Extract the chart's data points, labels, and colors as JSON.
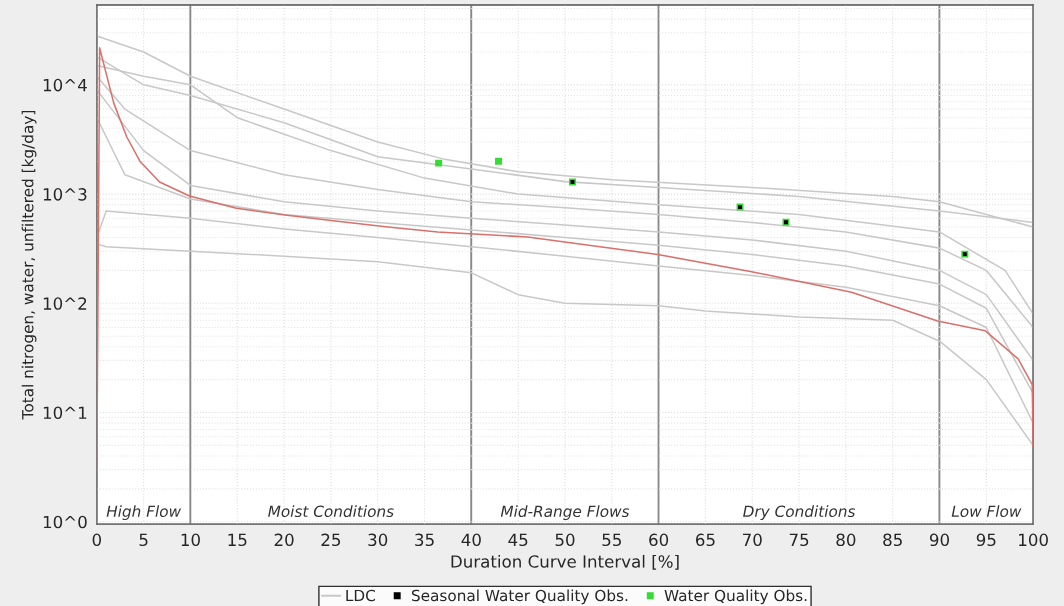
{
  "chart_data": {
    "type": "line",
    "xlabel": "Duration Curve Interval [%]",
    "ylabel": "Total nitrogen, water, unfiltered [kg/day]",
    "xlim": [
      0,
      100
    ],
    "xticks": [
      0,
      5,
      10,
      15,
      20,
      25,
      30,
      35,
      40,
      45,
      50,
      55,
      60,
      65,
      70,
      75,
      80,
      85,
      90,
      95,
      100
    ],
    "ylim": [
      0.95,
      54000
    ],
    "yticks": [
      {
        "value": 1,
        "label": "10^0"
      },
      {
        "value": 10,
        "label": "10^1"
      },
      {
        "value": 100,
        "label": "10^2"
      },
      {
        "value": 1000,
        "label": "10^3"
      },
      {
        "value": 10000,
        "label": "10^4"
      }
    ],
    "log": "y",
    "grid": true,
    "legend": "bottom",
    "line_style": "solid",
    "bands": [
      {
        "axis": "x",
        "from": 0,
        "to": 10,
        "label": "High Flow",
        "color": "#ffffff"
      },
      {
        "axis": "x",
        "from": 10,
        "to": 40,
        "label": "Moist Conditions",
        "color": "#ffffff"
      },
      {
        "axis": "x",
        "from": 40,
        "to": 60,
        "label": "Mid-Range Flows",
        "color": "#ffffff"
      },
      {
        "axis": "x",
        "from": 60,
        "to": 90,
        "label": "Dry Conditions",
        "color": "#ffffff"
      },
      {
        "axis": "x",
        "from": 90,
        "to": 100,
        "label": "Low Flow",
        "color": "#ffffff"
      }
    ],
    "series": [
      {
        "name": "LDC",
        "color": "#c8c8c8",
        "x": [
          0,
          5,
          10,
          20,
          30,
          37,
          45,
          55,
          70,
          85,
          90,
          95,
          100
        ],
        "values": [
          28000,
          20000,
          12000,
          6000,
          3000,
          2100,
          1600,
          1350,
          1150,
          950,
          850,
          650,
          500
        ]
      },
      {
        "color": "#c8c8c8",
        "x": [
          0,
          5,
          10,
          20,
          30,
          40,
          50,
          60,
          75,
          90,
          100
        ],
        "values": [
          18000,
          10000,
          8000,
          4500,
          2200,
          1700,
          1300,
          1150,
          950,
          700,
          550
        ]
      },
      {
        "color": "#c8c8c8",
        "x": [
          0,
          5,
          10,
          15,
          25,
          35,
          45,
          60,
          75,
          90,
          97,
          100
        ],
        "values": [
          15000,
          12000,
          10000,
          5000,
          2500,
          1400,
          1000,
          800,
          650,
          450,
          200,
          80
        ]
      },
      {
        "color": "#c8c8c8",
        "x": [
          0,
          3,
          10,
          20,
          30,
          40,
          50,
          60,
          70,
          80,
          90,
          95,
          100
        ],
        "values": [
          12000,
          6000,
          2500,
          1500,
          1100,
          850,
          750,
          650,
          550,
          450,
          320,
          200,
          60
        ]
      },
      {
        "color": "#c8c8c8",
        "x": [
          0,
          5,
          10,
          20,
          30,
          40,
          50,
          60,
          70,
          80,
          90,
          95,
          100
        ],
        "values": [
          9000,
          2500,
          1200,
          850,
          700,
          600,
          520,
          450,
          380,
          300,
          200,
          120,
          30
        ]
      },
      {
        "color": "#c8c8c8",
        "x": [
          0,
          3,
          10,
          20,
          30,
          40,
          50,
          60,
          70,
          80,
          90,
          95,
          100
        ],
        "values": [
          5000,
          1500,
          900,
          650,
          550,
          470,
          400,
          340,
          280,
          220,
          150,
          90,
          15
        ]
      },
      {
        "color": "#c8c8c8",
        "x": [
          0,
          1,
          10,
          20,
          30,
          40,
          50,
          60,
          70,
          80,
          90,
          95,
          100
        ],
        "values": [
          400,
          700,
          600,
          480,
          400,
          330,
          270,
          220,
          180,
          140,
          95,
          60,
          8
        ]
      },
      {
        "color": "#c8c8c8",
        "x": [
          0,
          1,
          10,
          20,
          30,
          40,
          45,
          50,
          60,
          65,
          75,
          85,
          90,
          95,
          100
        ],
        "values": [
          350,
          330,
          300,
          270,
          240,
          190,
          120,
          100,
          95,
          85,
          75,
          70,
          45,
          20,
          5
        ]
      },
      {
        "color": "#d9706a",
        "x": [
          0,
          0.3,
          1.8,
          3.2,
          4.6,
          6.7,
          9.9,
          14.9,
          20.3,
          25.7,
          31.1,
          36.4,
          46,
          59.9,
          69.8,
          80.6,
          89.8,
          94.9,
          98.4,
          99.9,
          100
        ],
        "values": [
          3,
          21800,
          6840,
          3330,
          2000,
          1290,
          960,
          740,
          640,
          565,
          500,
          450,
          405,
          280,
          196,
          126,
          69,
          56,
          31,
          18,
          4.8
        ]
      },
      {
        "name": "Seasonal Water Quality Obs.",
        "type": "scatter",
        "color": "#000000",
        "marker": "square",
        "x": [
          50.8,
          68.7,
          73.6,
          92.7
        ],
        "values": [
          1290,
          760,
          553,
          282
        ]
      },
      {
        "name": "Water Quality Obs.",
        "type": "scatter",
        "color": "#33dd33",
        "marker": "square",
        "x": [
          36.5,
          42.9,
          50.8,
          68.7,
          73.6,
          92.7
        ],
        "values": [
          1920,
          2000,
          1290,
          760,
          553,
          282
        ]
      }
    ]
  }
}
